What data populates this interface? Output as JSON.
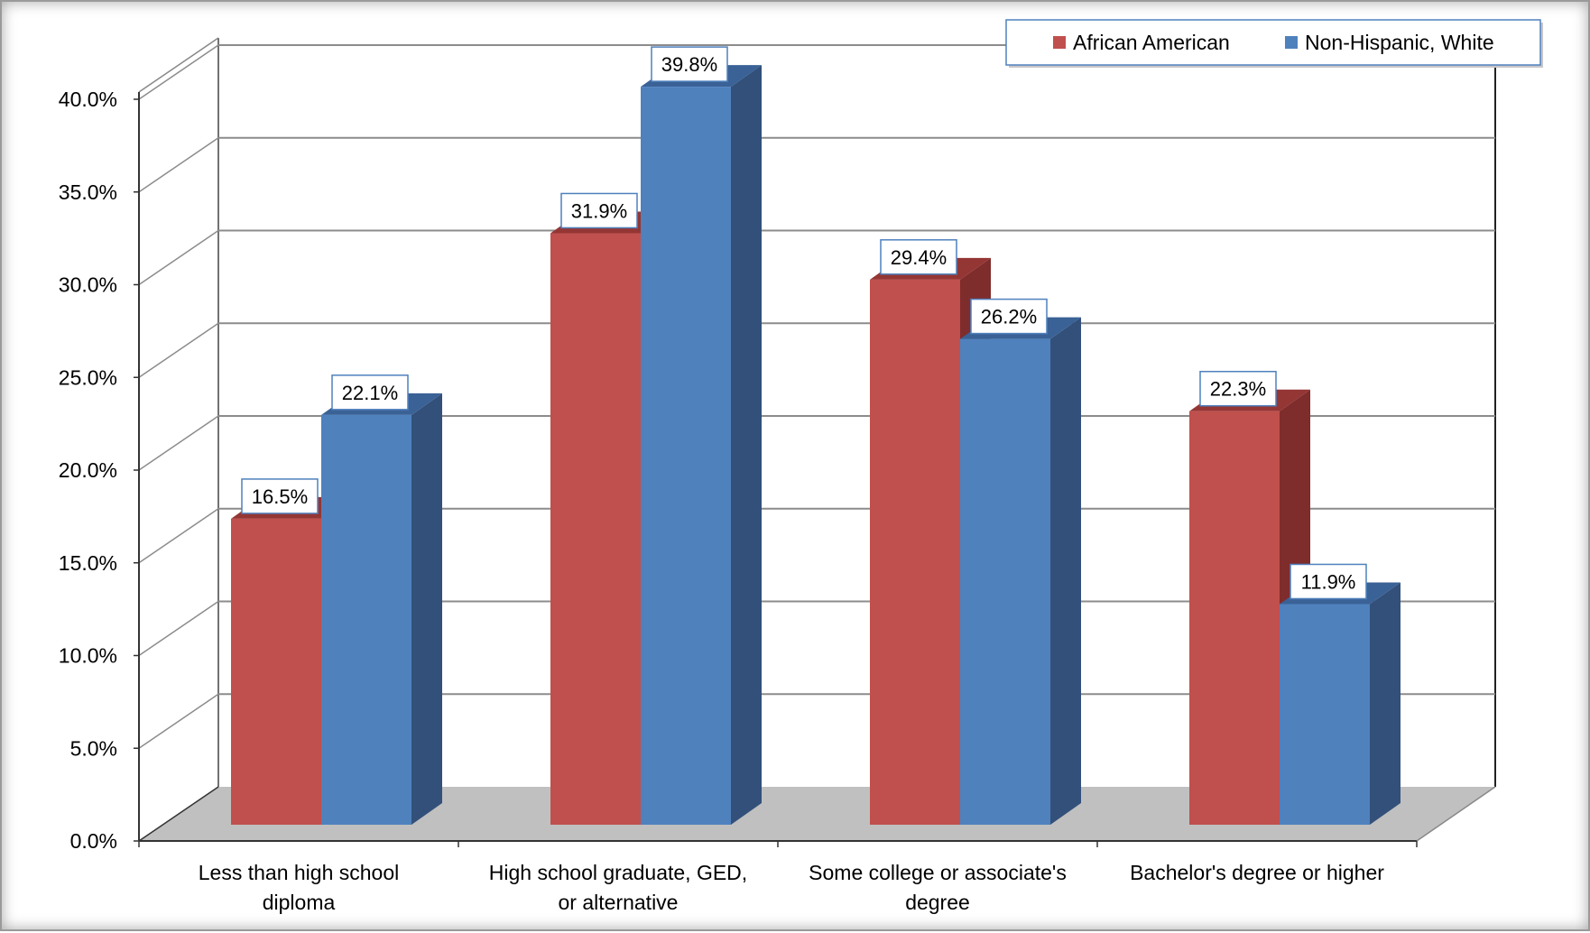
{
  "chart_data": {
    "type": "bar",
    "categories": [
      [
        "Less than high school",
        "diploma"
      ],
      [
        "High school graduate, GED,",
        "or alternative"
      ],
      [
        "Some college or associate's",
        "degree"
      ],
      [
        "Bachelor's degree or higher"
      ]
    ],
    "series": [
      {
        "name": "African American",
        "values": [
          16.5,
          31.9,
          29.4,
          22.3
        ],
        "color": "#c0504d",
        "side_color": "#7f2c2c",
        "top_color": "#943634"
      },
      {
        "name": "Non-Hispanic, White",
        "values": [
          22.1,
          39.8,
          26.2,
          11.9
        ],
        "color": "#4f81bd",
        "side_color": "#32507a",
        "top_color": "#3a6296"
      }
    ],
    "data_labels": [
      [
        "16.5%",
        "31.9%",
        "29.4%",
        "22.3%"
      ],
      [
        "22.1%",
        "39.8%",
        "26.2%",
        "11.9%"
      ]
    ],
    "ylim": [
      0,
      40
    ],
    "y_ticks": [
      "0.0%",
      "5.0%",
      "10.0%",
      "15.0%",
      "20.0%",
      "25.0%",
      "30.0%",
      "35.0%",
      "40.0%"
    ],
    "y_tick_values": [
      0,
      5,
      10,
      15,
      20,
      25,
      30,
      35,
      40
    ],
    "grid": true,
    "three_d": true,
    "legend_position": "top-right",
    "floor_color": "#c0c0c0"
  }
}
